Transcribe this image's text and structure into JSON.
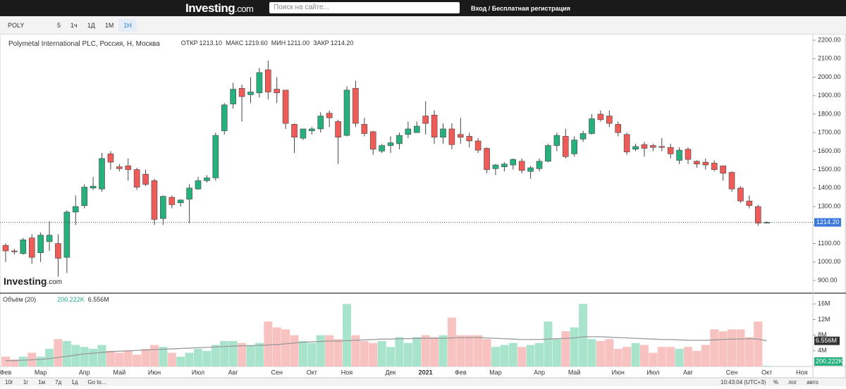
{
  "nav": {
    "logo": "Investing",
    "logo_suffix": ".com",
    "search": "Поиск на сайте...",
    "login": "Вход / Бесплатная регистрация"
  },
  "toolbar": {
    "symbol": "POLY",
    "intervals": [
      "5",
      "1ч",
      "1Д",
      "1М",
      "1Н"
    ],
    "active": "1Н"
  },
  "watermark": {
    "logo": "Investing",
    "suffix": ".com"
  },
  "bottom": {
    "ranges": [
      "10г",
      "1г",
      "1м",
      "7д",
      "1д"
    ],
    "goto": "Go to...",
    "time": "10:43:04 (UTC+3)",
    "options": [
      "%",
      "лог",
      "авто"
    ]
  },
  "chart_data": {
    "type": "candlestick",
    "title": "Polymetal International PLC, Россия, Н, Москва",
    "ohlc_labels": [
      "ОТКР",
      "МАКС",
      "МИН",
      "ЗАКР"
    ],
    "ohlc_value_labels": [
      "1213.10",
      "1219.60",
      "1211.00",
      "1214.20"
    ],
    "categories": [
      "Фев",
      null,
      null,
      null,
      "Мар",
      null,
      null,
      null,
      null,
      "Апр",
      null,
      null,
      null,
      "Май",
      null,
      null,
      null,
      "Июн",
      null,
      null,
      null,
      null,
      "Июл",
      null,
      null,
      null,
      "Авг",
      null,
      null,
      null,
      null,
      "Сен",
      null,
      null,
      null,
      "Окт",
      null,
      null,
      null,
      "Ноя",
      null,
      null,
      null,
      null,
      "Дек",
      null,
      null,
      null,
      "2021",
      null,
      null,
      null,
      "Фев",
      null,
      null,
      null,
      "Мар",
      null,
      null,
      null,
      null,
      "Апр",
      null,
      null,
      null,
      "Май",
      null,
      null,
      null,
      null,
      "Июн",
      null,
      null,
      null,
      "Июл",
      null,
      null,
      null,
      "Авг",
      null,
      null,
      null,
      null,
      "Сен",
      null,
      null,
      null,
      "Окт",
      null,
      null,
      null,
      "Ноя"
    ],
    "open": [
      1090,
      1060,
      1045,
      1130,
      1050,
      1110,
      1100,
      1025,
      1270,
      1305,
      1400,
      1395,
      1585,
      1515,
      1520,
      1500,
      1475,
      1440,
      1235,
      1350,
      1320,
      1340,
      1395,
      1440,
      1455,
      1710,
      1855,
      1940,
      1905,
      1915,
      2040,
      1935,
      1930,
      1745,
      1670,
      1710,
      1720,
      1805,
      1760,
      1685,
      1940,
      1745,
      1705,
      1600,
      1630,
      1640,
      1690,
      1700,
      1790,
      1795,
      1675,
      1720,
      1690,
      1680,
      1655,
      1615,
      1505,
      1515,
      1525,
      1545,
      1490,
      1505,
      1545,
      1630,
      1680,
      1585,
      1665,
      1695,
      1800,
      1790,
      1745,
      1690,
      1610,
      1635,
      1630,
      1625,
      1620,
      1550,
      1610,
      1545,
      1540,
      1535,
      1520,
      1485,
      1400,
      1330,
      1300,
      1213.1,
      null,
      null,
      null,
      null
    ],
    "high": [
      1100,
      1070,
      1130,
      1150,
      1160,
      1220,
      1150,
      1280,
      1360,
      1420,
      1460,
      1590,
      1600,
      1530,
      1560,
      1510,
      1500,
      1450,
      1360,
      1360,
      1340,
      1420,
      1460,
      1470,
      1700,
      1860,
      1970,
      1960,
      2000,
      2050,
      2090,
      2000,
      1930,
      1750,
      1720,
      1730,
      1810,
      1820,
      1770,
      1950,
      1980,
      1780,
      1710,
      1640,
      1680,
      1700,
      1760,
      1760,
      1870,
      1820,
      1750,
      1750,
      1780,
      1700,
      1670,
      1620,
      1530,
      1540,
      1560,
      1560,
      1520,
      1560,
      1640,
      1700,
      1720,
      1680,
      1710,
      1800,
      1820,
      1820,
      1760,
      1700,
      1640,
      1650,
      1640,
      1670,
      1640,
      1620,
      1620,
      1550,
      1560,
      1550,
      1520,
      1490,
      1410,
      1360,
      1310,
      1219.6,
      null,
      null,
      null,
      null
    ],
    "low": [
      1000,
      1040,
      1040,
      990,
      1000,
      1060,
      920,
      940,
      1200,
      1290,
      1390,
      1380,
      1500,
      1490,
      1440,
      1390,
      1410,
      1200,
      1200,
      1290,
      1300,
      1210,
      1390,
      1430,
      1440,
      1690,
      1830,
      1760,
      1860,
      1890,
      1880,
      1860,
      1720,
      1590,
      1660,
      1690,
      1700,
      1730,
      1530,
      1680,
      1730,
      1680,
      1580,
      1590,
      1590,
      1610,
      1670,
      1700,
      1690,
      1640,
      1640,
      1610,
      1640,
      1620,
      1590,
      1480,
      1470,
      1490,
      1500,
      1480,
      1450,
      1490,
      1540,
      1600,
      1560,
      1570,
      1650,
      1690,
      1760,
      1730,
      1680,
      1580,
      1600,
      1570,
      1600,
      1600,
      1560,
      1530,
      1530,
      1510,
      1500,
      1490,
      1440,
      1380,
      1320,
      1290,
      1195,
      1211,
      null,
      null,
      null,
      null
    ],
    "close": [
      1060,
      1055,
      1120,
      1025,
      1145,
      1145,
      1020,
      1270,
      1300,
      1405,
      1410,
      1560,
      1540,
      1505,
      1500,
      1405,
      1420,
      1230,
      1355,
      1310,
      1335,
      1400,
      1440,
      1455,
      1685,
      1850,
      1935,
      1895,
      1920,
      2025,
      1920,
      1915,
      1750,
      1675,
      1720,
      1720,
      1790,
      1780,
      1675,
      1930,
      1750,
      1695,
      1610,
      1630,
      1645,
      1685,
      1720,
      1735,
      1750,
      1675,
      1720,
      1635,
      1675,
      1655,
      1605,
      1500,
      1525,
      1530,
      1555,
      1495,
      1510,
      1545,
      1630,
      1685,
      1570,
      1660,
      1695,
      1775,
      1770,
      1750,
      1700,
      1595,
      1625,
      1615,
      1620,
      1620,
      1585,
      1605,
      1555,
      1530,
      1525,
      1500,
      1480,
      1395,
      1330,
      1305,
      1210,
      1214.2,
      null,
      null,
      null,
      null
    ],
    "up_color": "#26b07c",
    "down_color": "#ef5b57",
    "ylim": [
      835,
      2227
    ],
    "yticks": [
      {
        "value": 2200,
        "label": "2200.00"
      },
      {
        "value": 2100,
        "label": "2100.00"
      },
      {
        "value": 2000,
        "label": "2000.00"
      },
      {
        "value": 1900,
        "label": "1900.00"
      },
      {
        "value": 1800,
        "label": "1800.00"
      },
      {
        "value": 1700,
        "label": "1700.00"
      },
      {
        "value": 1600,
        "label": "1600.00"
      },
      {
        "value": 1500,
        "label": "1500.00"
      },
      {
        "value": 1400,
        "label": "1400.00"
      },
      {
        "value": 1300,
        "label": "1300.00"
      },
      {
        "value": 1200,
        "label": "1200.00"
      },
      {
        "value": 1100,
        "label": "1100.00"
      },
      {
        "value": 1000,
        "label": "1000.00"
      },
      {
        "value": 900,
        "label": "900.00"
      }
    ],
    "last_price": {
      "value": 1214.2,
      "label": "1214.20",
      "color": "#3a78e0"
    },
    "volume": {
      "name": "Объём (20)",
      "values": [
        2500000,
        1800000,
        2500000,
        3500000,
        2500000,
        4500000,
        7000000,
        6500000,
        5500000,
        5000000,
        4500000,
        5500000,
        4000000,
        3500000,
        4000000,
        3000000,
        4500000,
        5500000,
        5000000,
        3500000,
        2500000,
        3500000,
        4500000,
        4000000,
        5500000,
        6500000,
        6500000,
        6000000,
        5500000,
        6000000,
        11500000,
        10000000,
        9500000,
        8000000,
        6500000,
        6000000,
        8000000,
        8000000,
        7000000,
        16000000,
        8000000,
        6500000,
        6000000,
        6500000,
        5000000,
        7500000,
        6000000,
        7500000,
        8000000,
        7500000,
        8000000,
        12500000,
        8000000,
        8000000,
        8000000,
        7000000,
        5000000,
        5500000,
        6000000,
        5000000,
        5500000,
        6000000,
        11500000,
        7000000,
        9000000,
        10000000,
        16000000,
        7000000,
        6500000,
        7000000,
        4500000,
        5000000,
        6000000,
        5500000,
        3500000,
        5000000,
        5000000,
        4500000,
        5000000,
        4000000,
        5500000,
        9500000,
        9000000,
        9500000,
        9500000,
        7500000,
        11500000,
        200222,
        null,
        null,
        null,
        null
      ],
      "ma_values": [
        1500000,
        1500000,
        1600000,
        1700000,
        1800000,
        2000000,
        2300000,
        2600000,
        2900000,
        3200000,
        3400000,
        3600000,
        3800000,
        3900000,
        4000000,
        4100000,
        4200000,
        4300000,
        4400000,
        4500000,
        4600000,
        4700000,
        4800000,
        4900000,
        5000000,
        5100000,
        5200000,
        5300000,
        5300000,
        5400000,
        5500000,
        5600000,
        5800000,
        6000000,
        6200000,
        6300000,
        6400000,
        6500000,
        6500000,
        6600000,
        6700000,
        6800000,
        6900000,
        7000000,
        7000000,
        7100000,
        7100000,
        7200000,
        7200000,
        7200000,
        7200000,
        7300000,
        7400000,
        7400000,
        7400000,
        7300000,
        7200000,
        7100000,
        7000000,
        6900000,
        6900000,
        6900000,
        7000000,
        7100000,
        7200000,
        7300000,
        7600000,
        7600000,
        7600000,
        7500000,
        7400000,
        7300000,
        7200000,
        7100000,
        7000000,
        6900000,
        6900000,
        6800000,
        6700000,
        6700000,
        6700000,
        6800000,
        6900000,
        7000000,
        7000000,
        7100000,
        7000000,
        6556000,
        null,
        null,
        null,
        null
      ],
      "last_value_label": "200.222K",
      "last_ma_label": "6.556M",
      "up_color": "#a8e4cc",
      "down_color": "#f8c2c1",
      "ma_color": "#999999",
      "ylim": [
        0,
        18400000
      ],
      "yticks": [
        {
          "value": 16000000,
          "label": "16M"
        },
        {
          "value": 12000000,
          "label": "12M"
        },
        {
          "value": 8000000,
          "label": "8M"
        },
        {
          "value": 4000000,
          "label": "4M"
        }
      ]
    }
  }
}
